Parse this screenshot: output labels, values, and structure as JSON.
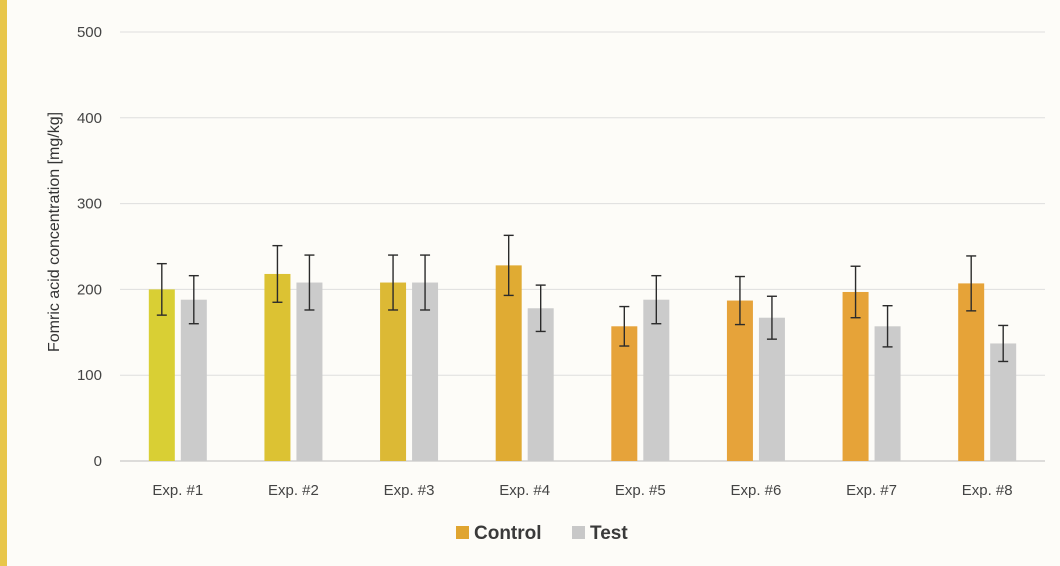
{
  "chart_data": {
    "type": "bar",
    "title": "",
    "xlabel": "",
    "ylabel": "Fomric acid concentration [mg/kg]",
    "ylim": [
      0,
      500
    ],
    "yticks": [
      0,
      100,
      200,
      300,
      400,
      500
    ],
    "grid": true,
    "legend_position": "bottom-center",
    "categories": [
      "Exp. #1",
      "Exp. #2",
      "Exp. #3",
      "Exp. #4",
      "Exp. #5",
      "Exp. #6",
      "Exp. #7",
      "Exp. #8"
    ],
    "series": [
      {
        "name": "Control",
        "legend_color": "#e0a530",
        "colors": [
          "#d9cf34",
          "#dcc233",
          "#dcb935",
          "#e0ab33",
          "#e6a33a",
          "#e6a33a",
          "#e6a338",
          "#e6a338"
        ],
        "values": [
          200,
          218,
          208,
          228,
          157,
          187,
          197,
          207
        ],
        "error": [
          30,
          33,
          32,
          35,
          23,
          28,
          30,
          32
        ]
      },
      {
        "name": "Test",
        "legend_color": "#c8c8c8",
        "colors": [
          "#cbcbcb",
          "#cbcbcb",
          "#cbcbcb",
          "#cbcbcb",
          "#cbcbcb",
          "#cbcbcb",
          "#cbcbcb",
          "#cbcbcb"
        ],
        "values": [
          188,
          208,
          208,
          178,
          188,
          167,
          157,
          137
        ],
        "error": [
          28,
          32,
          32,
          27,
          28,
          25,
          24,
          21
        ]
      }
    ]
  }
}
